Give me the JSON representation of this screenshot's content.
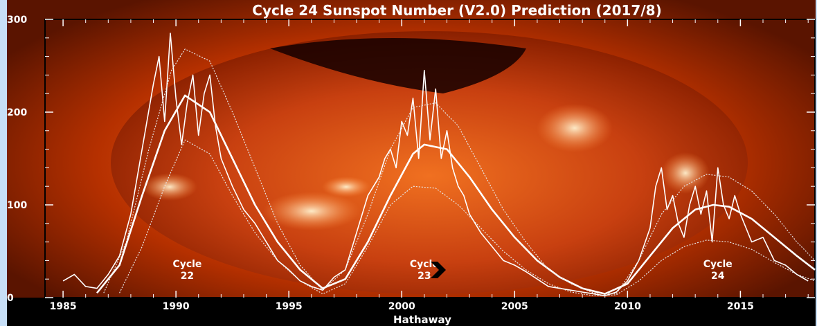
{
  "chart_data": {
    "type": "line",
    "title": "Cycle 24 Sunspot Number (V2.0) Prediction (2017/8)",
    "xlabel": "Hathaway",
    "ylabel": "",
    "xlim": [
      1984.2,
      2018.3
    ],
    "ylim": [
      0,
      300
    ],
    "xticks": [
      1985,
      1990,
      1995,
      2000,
      2005,
      2010,
      2015
    ],
    "xtick_labels": [
      "1985",
      "1990",
      "1995",
      "2000",
      "2005",
      "2010",
      "2015"
    ],
    "yticks": [
      0,
      100,
      200,
      300
    ],
    "ytick_labels": [
      "0",
      "100",
      "200",
      "300"
    ],
    "grid": false,
    "legend": "none",
    "cycle_labels": [
      {
        "line1": "Cycle",
        "line2": "22",
        "x": 1990.5,
        "y": 30
      },
      {
        "line1": "Cycle",
        "line2": "23",
        "x": 2001.0,
        "y": 30
      },
      {
        "line1": "Cycle",
        "line2": "24",
        "x": 2014.0,
        "y": 30
      }
    ],
    "series": [
      {
        "style": "monthly",
        "x": [
          1985.0,
          1985.5,
          1986.0,
          1986.5,
          1987.0,
          1987.5,
          1988.0,
          1988.5,
          1989.0,
          1989.25,
          1989.5,
          1989.75,
          1990.0,
          1990.25,
          1990.5,
          1990.75,
          1991.0,
          1991.25,
          1991.5,
          1991.75,
          1992.0,
          1992.5,
          1993.0,
          1993.5,
          1994.0,
          1994.5,
          1995.0,
          1995.5,
          1996.0,
          1996.5,
          1997.0,
          1997.5,
          1998.0,
          1998.5,
          1999.0,
          1999.25,
          1999.5,
          1999.75,
          2000.0,
          2000.25,
          2000.5,
          2000.75,
          2001.0,
          2001.25,
          2001.5,
          2001.75,
          2002.0,
          2002.25,
          2002.5,
          2002.75,
          2003.0,
          2003.5,
          2004.0,
          2004.5,
          2005.0,
          2005.5,
          2006.0,
          2006.5,
          2007.0,
          2007.5,
          2008.0,
          2008.5,
          2009.0,
          2009.5,
          2010.0,
          2010.5,
          2011.0,
          2011.25,
          2011.5,
          2011.75,
          2012.0,
          2012.25,
          2012.5,
          2012.75,
          2013.0,
          2013.25,
          2013.5,
          2013.75,
          2014.0,
          2014.25,
          2014.5,
          2014.75,
          2015.0,
          2015.5,
          2016.0,
          2016.5,
          2017.0,
          2017.5,
          2018.0
        ],
        "y": [
          18,
          25,
          12,
          10,
          25,
          45,
          90,
          160,
          230,
          260,
          190,
          285,
          215,
          165,
          210,
          240,
          175,
          220,
          240,
          185,
          150,
          120,
          95,
          80,
          60,
          40,
          30,
          18,
          12,
          8,
          22,
          30,
          70,
          110,
          130,
          150,
          160,
          140,
          190,
          175,
          215,
          150,
          245,
          170,
          225,
          150,
          180,
          140,
          120,
          110,
          90,
          70,
          55,
          40,
          35,
          28,
          20,
          12,
          10,
          8,
          6,
          4,
          2,
          6,
          18,
          40,
          75,
          120,
          140,
          95,
          110,
          80,
          65,
          100,
          120,
          90,
          115,
          60,
          140,
          100,
          85,
          110,
          90,
          60,
          65,
          40,
          35,
          25,
          18
        ]
      },
      {
        "style": "prediction",
        "x": [
          1986.5,
          1987.5,
          1988.5,
          1989.5,
          1990.4,
          1991.5,
          1992.5,
          1993.5,
          1994.5,
          1995.5,
          1996.5,
          1997.5,
          1998.5,
          1999.5,
          2000.5,
          2001.0,
          2002.0,
          2003.0,
          2004.0,
          2005.0,
          2006.0,
          2007.0,
          2008.0,
          2009.0,
          2010.0,
          2011.0,
          2012.0,
          2013.0,
          2013.8,
          2014.5,
          2015.5,
          2016.5,
          2017.5,
          2018.3
        ],
        "y": [
          5,
          35,
          110,
          180,
          218,
          200,
          150,
          100,
          60,
          30,
          10,
          20,
          60,
          110,
          155,
          165,
          160,
          130,
          95,
          65,
          40,
          22,
          10,
          4,
          15,
          45,
          75,
          95,
          100,
          98,
          85,
          65,
          45,
          30
        ]
      },
      {
        "style": "upper-bound",
        "x": [
          1986.8,
          1987.8,
          1988.8,
          1989.8,
          1990.4,
          1991.5,
          1992.5,
          1993.5,
          1994.5,
          1995.5,
          1996.5,
          1997.5,
          1998.5,
          1999.5,
          2000.5,
          2001.5,
          2002.5,
          2003.5,
          2004.5,
          2005.5,
          2006.5,
          2007.5,
          2008.5,
          2009.5,
          2010.5,
          2011.5,
          2012.5,
          2013.5,
          2014.5,
          2015.5,
          2016.5,
          2017.5,
          2018.3
        ],
        "y": [
          5,
          60,
          160,
          245,
          268,
          255,
          200,
          140,
          80,
          35,
          8,
          30,
          90,
          160,
          205,
          210,
          185,
          140,
          95,
          60,
          30,
          15,
          5,
          4,
          40,
          90,
          120,
          133,
          130,
          115,
          90,
          60,
          40
        ]
      },
      {
        "style": "lower-bound",
        "x": [
          1987.5,
          1988.5,
          1989.5,
          1990.4,
          1991.5,
          1992.5,
          1993.5,
          1994.5,
          1995.5,
          1996.5,
          1997.5,
          1998.5,
          1999.5,
          2000.5,
          2001.5,
          2002.5,
          2003.5,
          2004.5,
          2005.5,
          2006.5,
          2007.5,
          2008.5,
          2009.5,
          2010.5,
          2011.5,
          2012.5,
          2013.5,
          2014.5,
          2015.5,
          2016.5,
          2017.5,
          2018.3
        ],
        "y": [
          5,
          55,
          120,
          170,
          155,
          110,
          70,
          40,
          18,
          4,
          15,
          55,
          100,
          120,
          118,
          100,
          75,
          50,
          30,
          15,
          6,
          2,
          3,
          18,
          40,
          55,
          62,
          60,
          52,
          38,
          25,
          18
        ]
      }
    ]
  }
}
